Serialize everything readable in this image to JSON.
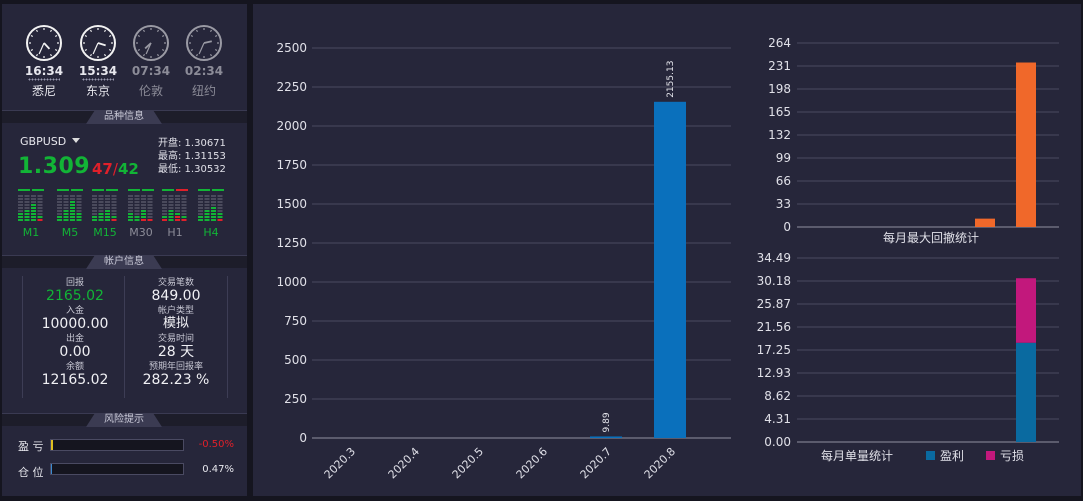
{
  "clocks": [
    {
      "time": "16:34",
      "city": "悉尼",
      "active": true,
      "hour": 16,
      "minute": 34
    },
    {
      "time": "15:34",
      "city": "东京",
      "active": true,
      "hour": 15,
      "minute": 34
    },
    {
      "time": "07:34",
      "city": "伦敦",
      "active": false,
      "hour": 7,
      "minute": 34
    },
    {
      "time": "02:34",
      "city": "纽约",
      "active": false,
      "hour": 2,
      "minute": 34
    }
  ],
  "sections": {
    "instrument": "品种信息",
    "account": "帐户信息",
    "risk": "风险提示"
  },
  "instrument": {
    "symbol": "GBPUSD",
    "price_main": "1.309",
    "price_frac_a": "47",
    "price_sep": "/",
    "price_frac_b": "42",
    "open": "开盘: 1.30671",
    "high": "最高: 1.31153",
    "low": "最低: 1.30532"
  },
  "timeframes": [
    {
      "label": "M1",
      "active": true
    },
    {
      "label": "M5",
      "active": true
    },
    {
      "label": "M15",
      "active": true
    },
    {
      "label": "M30",
      "active": false
    },
    {
      "label": "H1",
      "active": false
    },
    {
      "label": "H4",
      "active": true
    }
  ],
  "account": {
    "returns_label": "回报",
    "returns_value": "2165.02",
    "deposit_label": "入金",
    "deposit_value": "10000.00",
    "withdraw_label": "出金",
    "withdraw_value": "0.00",
    "balance_label": "余额",
    "balance_value": "12165.02",
    "trades_label": "交易笔数",
    "trades_value": "849.00",
    "type_label": "帐户类型",
    "type_value": "模拟",
    "duration_label": "交易时间",
    "duration_value": "28 天",
    "annual_label": "预期年回报率",
    "annual_value": "282.23 %"
  },
  "risk": {
    "pnl_label": "盈 亏",
    "pnl_value": "-0.50%",
    "pnl_fill": 0.005,
    "position_label": "仓 位",
    "position_value": "0.47%",
    "position_fill": 0.0047
  },
  "colors": {
    "green": "#12b436",
    "red": "#e0202a",
    "blue": "#0a70bc",
    "orange": "#f0682a",
    "magenta": "#c2187c",
    "profit": "#0a6aa0"
  },
  "chart_data": [
    {
      "type": "bar",
      "categories": [
        "2020.3",
        "2020.4",
        "2020.5",
        "2020.6",
        "2020.7",
        "2020.8"
      ],
      "values": [
        0,
        0,
        0,
        0,
        9.89,
        2155.13
      ],
      "value_labels": [
        "",
        "",
        "",
        "",
        "9.89",
        "2155.13"
      ],
      "yticks": [
        "0",
        "250",
        "500",
        "750",
        "1000",
        "1250",
        "1500",
        "1750",
        "2000",
        "2250",
        "2500"
      ],
      "ylim": [
        0,
        2500
      ]
    },
    {
      "type": "bar",
      "title": "每月最大回撤统计",
      "values": [
        0,
        0,
        0,
        0,
        12,
        236
      ],
      "yticks": [
        "0",
        "33",
        "66",
        "99",
        "132",
        "165",
        "198",
        "231",
        "264"
      ],
      "ylim": [
        0,
        264
      ]
    },
    {
      "type": "bar",
      "title": "每月单量统计",
      "series": [
        {
          "name": "盈利",
          "values": [
            0,
            0,
            0,
            0,
            0,
            18.6
          ]
        },
        {
          "name": "亏损",
          "values": [
            0,
            0,
            0,
            0,
            0,
            12.1
          ]
        }
      ],
      "yticks": [
        "0.00",
        "4.31",
        "8.62",
        "12.93",
        "17.25",
        "21.56",
        "25.87",
        "30.18",
        "34.49"
      ],
      "ylim": [
        0,
        34.49
      ]
    }
  ]
}
